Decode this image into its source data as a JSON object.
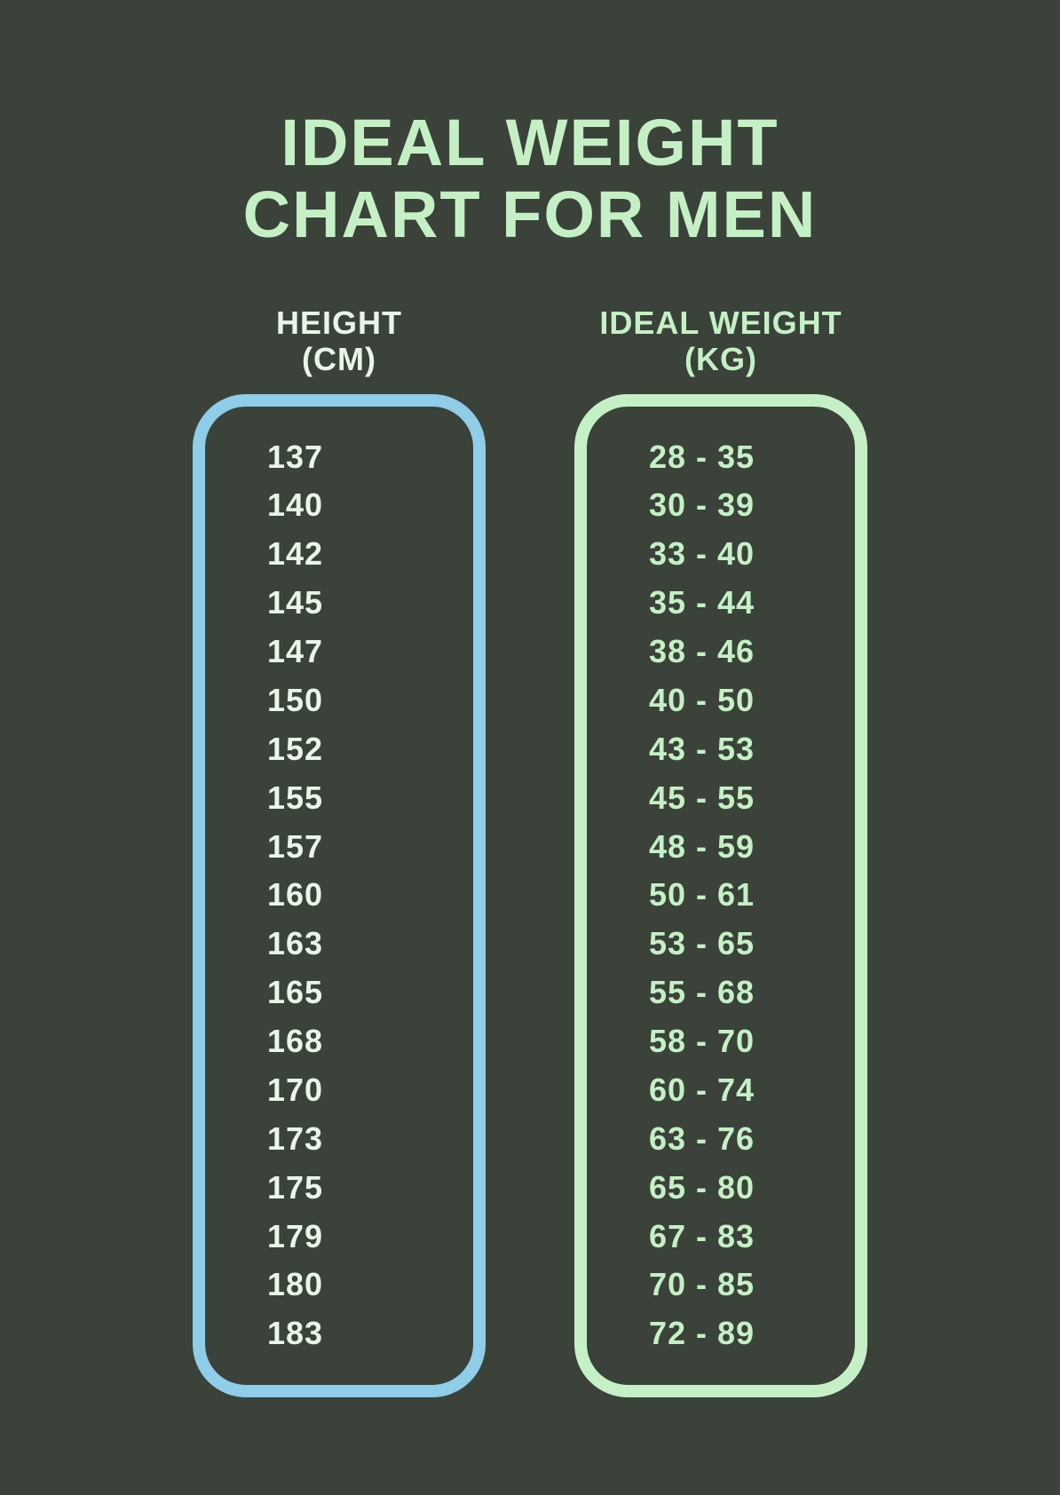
{
  "title_line1": "IDEAL WEIGHT",
  "title_line2": "CHART FOR MEN",
  "height_header_line1": "HEIGHT",
  "height_header_line2": "(CM)",
  "weight_header_line1": "IDEAL WEIGHT",
  "weight_header_line2": "(KG)",
  "colors": {
    "background": "#3a423a",
    "title_text": "#c5f0c5",
    "height_border": "#8fcde8",
    "weight_border": "#c5f0c5",
    "height_text": "#e8f5e8",
    "weight_text": "#c5f0c5"
  },
  "style": {
    "title_fontsize": 74,
    "header_fontsize": 36,
    "row_fontsize": 36,
    "pill_border_width": 14,
    "pill_border_radius": 60,
    "pill_width": 330,
    "pill_height": 1130,
    "column_gap": 100
  },
  "rows": [
    {
      "height": "137",
      "weight": "28 - 35"
    },
    {
      "height": "140",
      "weight": "30 - 39"
    },
    {
      "height": "142",
      "weight": "33 - 40"
    },
    {
      "height": "145",
      "weight": "35 - 44"
    },
    {
      "height": "147",
      "weight": "38 - 46"
    },
    {
      "height": "150",
      "weight": "40 - 50"
    },
    {
      "height": "152",
      "weight": "43 - 53"
    },
    {
      "height": "155",
      "weight": "45 - 55"
    },
    {
      "height": "157",
      "weight": "48 - 59"
    },
    {
      "height": "160",
      "weight": "50 - 61"
    },
    {
      "height": "163",
      "weight": "53 - 65"
    },
    {
      "height": "165",
      "weight": "55 - 68"
    },
    {
      "height": "168",
      "weight": "58 - 70"
    },
    {
      "height": "170",
      "weight": "60 - 74"
    },
    {
      "height": "173",
      "weight": "63 - 76"
    },
    {
      "height": "175",
      "weight": "65 - 80"
    },
    {
      "height": "179",
      "weight": "67 - 83"
    },
    {
      "height": "180",
      "weight": "70 - 85"
    },
    {
      "height": "183",
      "weight": "72 - 89"
    }
  ]
}
